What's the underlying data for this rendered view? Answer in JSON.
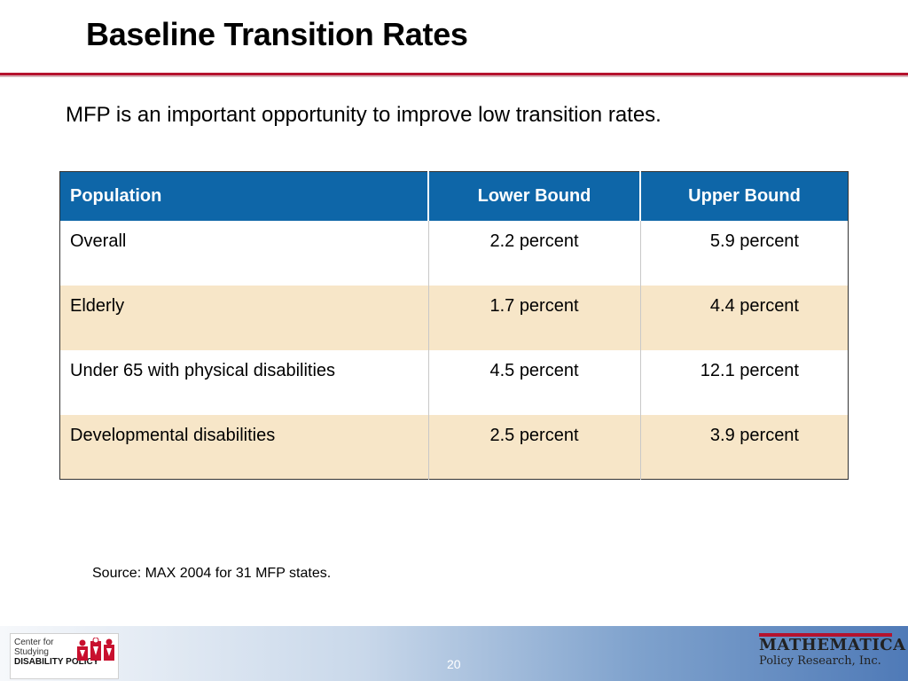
{
  "slide": {
    "title": "Baseline Transition Rates",
    "subtitle": "MFP  is an important opportunity to improve low transition rates.",
    "source": "Source: MAX 2004 for 31 MFP states.",
    "page_number": "20"
  },
  "table": {
    "headers": [
      "Population",
      "Lower Bound",
      "Upper Bound"
    ],
    "rows": [
      [
        "Overall",
        "2.2 percent",
        "5.9 percent"
      ],
      [
        "Elderly",
        "1.7 percent",
        "4.4 percent"
      ],
      [
        "Under 65 with physical disabilities",
        "4.5 percent",
        "12.1 percent"
      ],
      [
        "Developmental disabilities",
        "2.5 percent",
        "3.9 percent"
      ]
    ]
  },
  "footer": {
    "left_logo": {
      "line1": "Center for",
      "line2": "Studying",
      "line3": "DISABILITY POLICY"
    },
    "right_logo": {
      "line1": "MATHEMATICA",
      "line2": "Policy Research, Inc."
    }
  },
  "colors": {
    "accent_rule": "#b5122e",
    "header_bg": "#0e66a8",
    "band_row_bg": "#f7e6c8"
  }
}
